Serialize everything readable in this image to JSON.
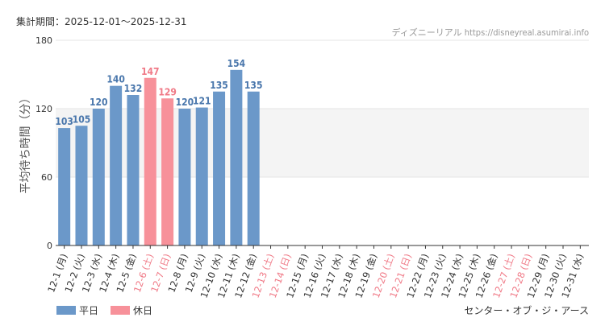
{
  "header": {
    "period": "集計期間：2025-12-01〜2025-12-31",
    "credit": "ディズニーリアル https://disneyreal.asumirai.info"
  },
  "attraction": "センター・オブ・ジ・アース",
  "legend": [
    {
      "label": "平日",
      "color": "#6b98c9"
    },
    {
      "label": "休日",
      "color": "#f7919a"
    }
  ],
  "colors": {
    "weekday": "#6b98c9",
    "holiday": "#f7919a",
    "weekday_text": "#4a77ac",
    "holiday_text": "#f07a87",
    "band": "#f4f4f4",
    "axis": "#333333"
  },
  "chart_data": {
    "type": "bar",
    "ylabel": "平均待ち時間（分）",
    "ylim": [
      0,
      180
    ],
    "yticks": [
      0,
      60,
      120,
      180
    ],
    "band": [
      60,
      120
    ],
    "categories": [
      "12-1 (月)",
      "12-2 (火)",
      "12-3 (水)",
      "12-4 (木)",
      "12-5 (金)",
      "12-6 (土)",
      "12-7 (日)",
      "12-8 (月)",
      "12-9 (火)",
      "12-10 (水)",
      "12-11 (木)",
      "12-12 (金)",
      "12-13 (土)",
      "12-14 (日)",
      "12-15 (月)",
      "12-16 (火)",
      "12-17 (水)",
      "12-18 (木)",
      "12-19 (金)",
      "12-20 (土)",
      "12-21 (日)",
      "12-22 (月)",
      "12-23 (火)",
      "12-24 (水)",
      "12-25 (木)",
      "12-26 (金)",
      "12-27 (土)",
      "12-28 (日)",
      "12-29 (月)",
      "12-30 (火)",
      "12-31 (水)"
    ],
    "holiday": [
      false,
      false,
      false,
      false,
      false,
      true,
      true,
      false,
      false,
      false,
      false,
      false,
      true,
      true,
      false,
      false,
      false,
      false,
      false,
      true,
      true,
      false,
      false,
      false,
      false,
      false,
      true,
      true,
      false,
      false,
      false
    ],
    "values": [
      103,
      105,
      120,
      140,
      132,
      147,
      129,
      120,
      121,
      135,
      154,
      135,
      null,
      null,
      null,
      null,
      null,
      null,
      null,
      null,
      null,
      null,
      null,
      null,
      null,
      null,
      null,
      null,
      null,
      null,
      null
    ]
  }
}
